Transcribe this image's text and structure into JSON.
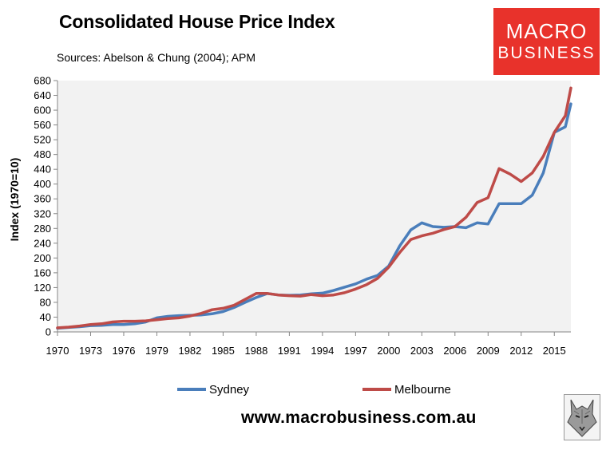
{
  "header": {
    "title": "Consolidated House Price Index",
    "subtitle": "Sources: Abelson & Chung (2004); APM"
  },
  "logo": {
    "line1": "MACRO",
    "line2": "BUSINESS",
    "bg_color": "#e8322b",
    "icon": "wolf-icon"
  },
  "footer": {
    "url": "www.macrobusiness.com.au"
  },
  "chart_data": {
    "type": "line",
    "title": "Consolidated House Price Index",
    "xlabel": "",
    "ylabel": "Index (1970=10)",
    "xlim": [
      1970,
      2016.5
    ],
    "ylim": [
      0,
      680
    ],
    "yticks": [
      0,
      40,
      80,
      120,
      160,
      200,
      240,
      280,
      320,
      360,
      400,
      440,
      480,
      520,
      560,
      600,
      640,
      680
    ],
    "xticks": [
      1970,
      1973,
      1976,
      1979,
      1982,
      1985,
      1988,
      1991,
      1994,
      1997,
      2000,
      2003,
      2006,
      2009,
      2012,
      2015
    ],
    "plot_background": "#f2f2f2",
    "grid": false,
    "legend_position": "bottom",
    "series": [
      {
        "name": "Sydney",
        "color": "#4a7ebb",
        "x": [
          1970,
          1971,
          1972,
          1973,
          1974,
          1975,
          1976,
          1977,
          1978,
          1979,
          1980,
          1981,
          1982,
          1983,
          1984,
          1985,
          1986,
          1987,
          1988,
          1989,
          1990,
          1991,
          1992,
          1993,
          1994,
          1995,
          1996,
          1997,
          1998,
          1999,
          2000,
          2001,
          2002,
          2003,
          2004,
          2005,
          2006,
          2007,
          2008,
          2009,
          2010,
          2011,
          2012,
          2013,
          2014,
          2015,
          2016,
          2016.5
        ],
        "values": [
          10,
          12,
          14,
          17,
          18,
          20,
          20,
          22,
          27,
          38,
          42,
          44,
          45,
          46,
          49,
          55,
          66,
          80,
          93,
          104,
          100,
          99,
          100,
          103,
          105,
          112,
          121,
          130,
          143,
          153,
          178,
          233,
          276,
          295,
          285,
          283,
          285,
          282,
          295,
          292,
          347,
          347,
          347,
          370,
          430,
          540,
          555,
          617
        ]
      },
      {
        "name": "Melbourne",
        "color": "#be4b48",
        "x": [
          1970,
          1971,
          1972,
          1973,
          1974,
          1975,
          1976,
          1977,
          1978,
          1979,
          1980,
          1981,
          1982,
          1983,
          1984,
          1985,
          1986,
          1987,
          1988,
          1989,
          1990,
          1991,
          1992,
          1993,
          1994,
          1995,
          1996,
          1997,
          1998,
          1999,
          2000,
          2001,
          2002,
          2003,
          2004,
          2005,
          2006,
          2007,
          2008,
          2009,
          2010,
          2011,
          2012,
          2013,
          2014,
          2015,
          2016,
          2016.5
        ],
        "values": [
          11,
          13,
          16,
          20,
          22,
          27,
          29,
          29,
          30,
          33,
          36,
          38,
          43,
          50,
          60,
          64,
          72,
          88,
          104,
          104,
          100,
          98,
          97,
          101,
          98,
          100,
          106,
          116,
          128,
          145,
          175,
          215,
          250,
          260,
          267,
          277,
          285,
          310,
          350,
          363,
          442,
          427,
          407,
          430,
          475,
          540,
          585,
          660
        ]
      }
    ]
  }
}
